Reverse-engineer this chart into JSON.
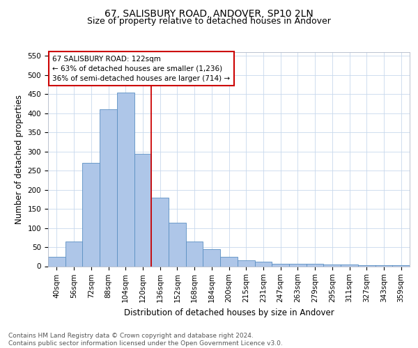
{
  "title1": "67, SALISBURY ROAD, ANDOVER, SP10 2LN",
  "title2": "Size of property relative to detached houses in Andover",
  "xlabel": "Distribution of detached houses by size in Andover",
  "ylabel": "Number of detached properties",
  "bar_labels": [
    "40sqm",
    "56sqm",
    "72sqm",
    "88sqm",
    "104sqm",
    "120sqm",
    "136sqm",
    "152sqm",
    "168sqm",
    "184sqm",
    "200sqm",
    "215sqm",
    "231sqm",
    "247sqm",
    "263sqm",
    "279sqm",
    "295sqm",
    "311sqm",
    "327sqm",
    "343sqm",
    "359sqm"
  ],
  "bar_values": [
    25,
    65,
    270,
    410,
    455,
    295,
    180,
    113,
    65,
    44,
    25,
    15,
    12,
    6,
    6,
    6,
    5,
    4,
    3,
    2,
    3
  ],
  "bar_color": "#aec6e8",
  "bar_edge_color": "#5a8fc2",
  "vline_x": 5.5,
  "vline_color": "#cc0000",
  "annotation_text": "67 SALISBURY ROAD: 122sqm\n← 63% of detached houses are smaller (1,236)\n36% of semi-detached houses are larger (714) →",
  "annotation_box_color": "#ffffff",
  "annotation_box_edge": "#cc0000",
  "ylim": [
    0,
    560
  ],
  "yticks": [
    0,
    50,
    100,
    150,
    200,
    250,
    300,
    350,
    400,
    450,
    500,
    550
  ],
  "background_color": "#ffffff",
  "grid_color": "#c8d8ec",
  "footer_text": "Contains HM Land Registry data © Crown copyright and database right 2024.\nContains public sector information licensed under the Open Government Licence v3.0.",
  "title1_fontsize": 10,
  "title2_fontsize": 9,
  "xlabel_fontsize": 8.5,
  "ylabel_fontsize": 8.5,
  "tick_fontsize": 7.5,
  "annotation_fontsize": 7.5,
  "footer_fontsize": 6.5
}
